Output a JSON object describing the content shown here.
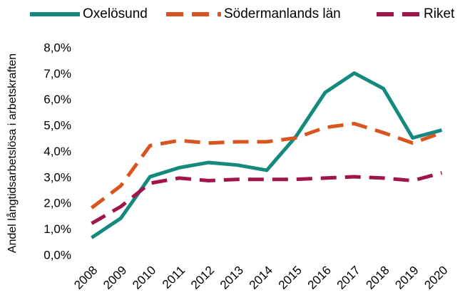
{
  "chart_data": {
    "type": "line",
    "y_label": "Andel långtidsarbetslösa i arbetskraften",
    "categories": [
      "2008",
      "2009",
      "2010",
      "2011",
      "2012",
      "2013",
      "2014",
      "2015",
      "2016",
      "2017",
      "2018",
      "2019",
      "2020"
    ],
    "series": [
      {
        "name": "Oxelösund",
        "color": "#138a7d",
        "dash": "solid",
        "values": [
          0.7,
          1.45,
          3.05,
          3.4,
          3.6,
          3.5,
          3.3,
          4.6,
          6.3,
          7.05,
          6.45,
          4.55,
          4.85
        ]
      },
      {
        "name": "Södermanlands län",
        "color": "#d9541e",
        "dash": "dashed",
        "values": [
          1.85,
          2.7,
          4.25,
          4.45,
          4.35,
          4.4,
          4.4,
          4.55,
          4.95,
          5.1,
          4.75,
          4.35,
          4.75
        ]
      },
      {
        "name": "Riket",
        "color": "#a0154b",
        "dash": "dashed",
        "values": [
          1.25,
          1.9,
          2.8,
          3.0,
          2.9,
          2.95,
          2.95,
          2.95,
          3.0,
          3.05,
          3.0,
          2.9,
          3.2
        ]
      }
    ],
    "ylim": [
      0,
      8
    ],
    "yticks": [
      {
        "value": 0,
        "label": "0,0%"
      },
      {
        "value": 1,
        "label": "1,0%"
      },
      {
        "value": 2,
        "label": "2,0%"
      },
      {
        "value": 3,
        "label": "3,0%"
      },
      {
        "value": 4,
        "label": "4,0%"
      },
      {
        "value": 5,
        "label": "5,0%"
      },
      {
        "value": 6,
        "label": "6,0%"
      },
      {
        "value": 7,
        "label": "7,0%"
      },
      {
        "value": 8,
        "label": "8,0%"
      }
    ],
    "legend": "top"
  }
}
